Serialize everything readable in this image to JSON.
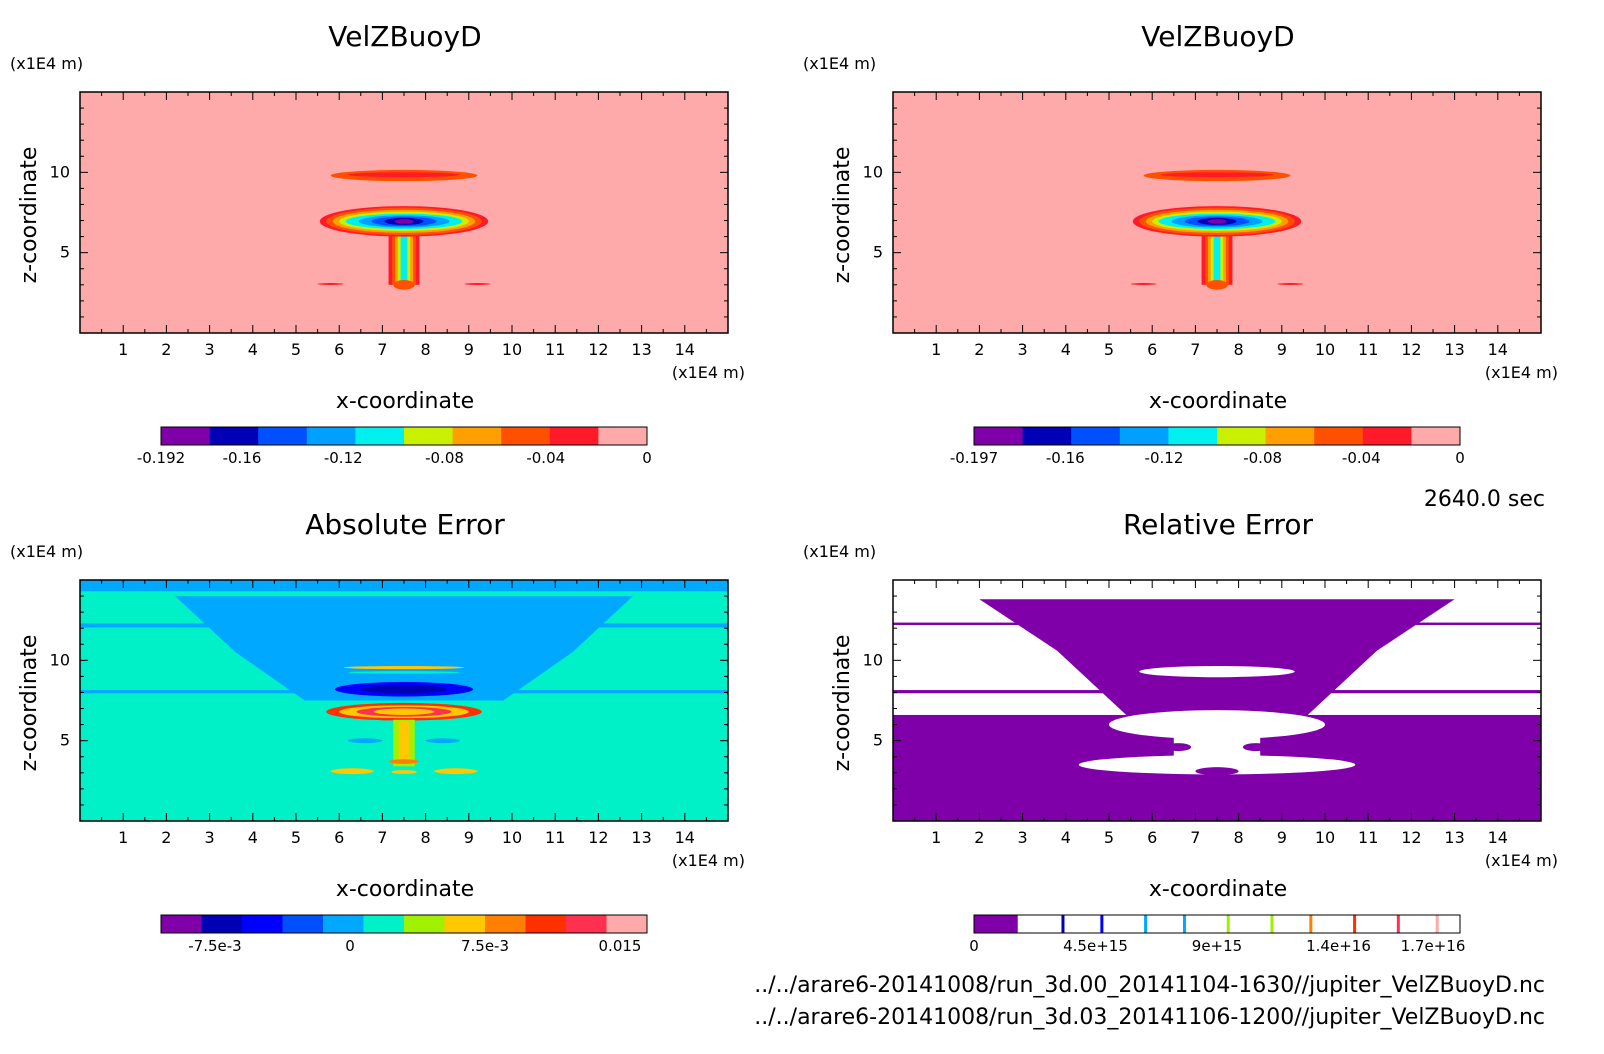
{
  "time_label": "2640.0 sec",
  "footer": {
    "line1": "../../arare6-20141008/run_3d.00_20141104-1630//jupiter_VelZBuoyD.nc",
    "line2": "../../arare6-20141008/run_3d.03_20141106-1200//jupiter_VelZBuoyD.nc"
  },
  "palette_main": [
    "#7f00a8",
    "#0000b4",
    "#0050ff",
    "#00a0ff",
    "#00f0f0",
    "#c8f000",
    "#ffa000",
    "#ff5000",
    "#ff1a2a",
    "#ffaaaa"
  ],
  "palette_err": [
    "#7f00a8",
    "#0000b4",
    "#0000ff",
    "#0050ff",
    "#00a8ff",
    "#00f0c8",
    "#a0f000",
    "#ffc800",
    "#ff8000",
    "#ff3000",
    "#ff3050",
    "#ffaaaa"
  ],
  "chart_data": [
    {
      "type": "heatmap",
      "title": "VelZBuoyD",
      "xlabel": "x-coordinate",
      "ylabel": "z-coordinate",
      "x_unit": "(x1E4 m)",
      "y_unit": "(x1E4 m)",
      "xlim": [
        0,
        15
      ],
      "ylim": [
        0,
        15
      ],
      "x_ticks": [
        "1",
        "2",
        "3",
        "4",
        "5",
        "6",
        "7",
        "8",
        "9",
        "10",
        "11",
        "12",
        "13",
        "14"
      ],
      "y_ticks": [
        "5",
        "10"
      ],
      "colorbar": {
        "min": -0.192,
        "max": 0,
        "labels": [
          "-0.192",
          "-0.16",
          "-0.12",
          "-0.08",
          "-0.04",
          "0"
        ],
        "label_values": [
          -0.192,
          -0.16,
          -0.12,
          -0.08,
          -0.04,
          0
        ]
      },
      "features": "zero background; negative plume centred near x=7.5, z=7 (cap) with stem down to z=3 and thin arc near z=10"
    },
    {
      "type": "heatmap",
      "title": "VelZBuoyD",
      "xlabel": "x-coordinate",
      "ylabel": "z-coordinate",
      "x_unit": "(x1E4 m)",
      "y_unit": "(x1E4 m)",
      "xlim": [
        0,
        15
      ],
      "ylim": [
        0,
        15
      ],
      "x_ticks": [
        "1",
        "2",
        "3",
        "4",
        "5",
        "6",
        "7",
        "8",
        "9",
        "10",
        "11",
        "12",
        "13",
        "14"
      ],
      "y_ticks": [
        "5",
        "10"
      ],
      "colorbar": {
        "min": -0.197,
        "max": 0,
        "labels": [
          "-0.197",
          "-0.16",
          "-0.12",
          "-0.08",
          "-0.04",
          "0"
        ],
        "label_values": [
          -0.197,
          -0.16,
          -0.12,
          -0.08,
          -0.04,
          0
        ]
      }
    },
    {
      "type": "heatmap",
      "title": "Absolute Error",
      "xlabel": "x-coordinate",
      "ylabel": "z-coordinate",
      "x_unit": "(x1E4 m)",
      "y_unit": "(x1E4 m)",
      "xlim": [
        0,
        15
      ],
      "ylim": [
        0,
        15
      ],
      "x_ticks": [
        "1",
        "2",
        "3",
        "4",
        "5",
        "6",
        "7",
        "8",
        "9",
        "10",
        "11",
        "12",
        "13",
        "14"
      ],
      "y_ticks": [
        "5",
        "10"
      ],
      "colorbar": {
        "min": -0.0105,
        "max": 0.0165,
        "labels": [
          "-7.5e-3",
          "0",
          "7.5e-3",
          "0.015"
        ],
        "label_values": [
          -0.0075,
          0,
          0.0075,
          0.015
        ]
      }
    },
    {
      "type": "heatmap",
      "title": "Relative Error",
      "xlabel": "x-coordinate",
      "ylabel": "z-coordinate",
      "x_unit": "(x1E4 m)",
      "y_unit": "(x1E4 m)",
      "xlim": [
        0,
        15
      ],
      "ylim": [
        0,
        15
      ],
      "x_ticks": [
        "1",
        "2",
        "3",
        "4",
        "5",
        "6",
        "7",
        "8",
        "9",
        "10",
        "11",
        "12",
        "13",
        "14"
      ],
      "y_ticks": [
        "5",
        "10"
      ],
      "colorbar": {
        "min": 0,
        "max": 1.8e+16,
        "labels": [
          "0",
          "4.5e+15",
          "9e+15",
          "1.4e+16",
          "1.7e+16"
        ],
        "label_values": [
          0,
          4500000000000000.0,
          9000000000000000.0,
          1.35e+16,
          1.7e+16
        ]
      }
    }
  ]
}
